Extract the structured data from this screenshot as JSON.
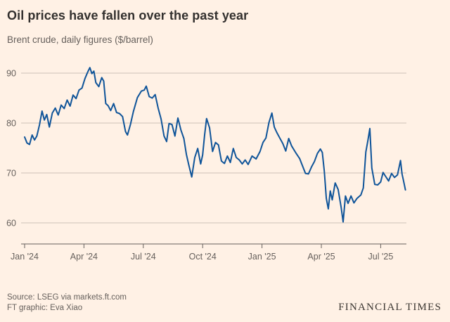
{
  "footer": {
    "source": "Source: LSEG via markets.ft.com",
    "credit": "FT graphic: Eva Xiao",
    "brand": "FINANCIAL TIMES"
  },
  "chart_data": {
    "type": "line",
    "title": "Oil prices have fallen over the past year",
    "subtitle": "Brent crude, daily figures ($/barrel)",
    "x_unit": "months since Jan 2024",
    "x_range": [
      0,
      19.3
    ],
    "x_ticks": [
      {
        "pos": 0,
        "label": "Jan '24"
      },
      {
        "pos": 3,
        "label": "Apr '24"
      },
      {
        "pos": 6,
        "label": "Jul '24"
      },
      {
        "pos": 9,
        "label": "Oct '24"
      },
      {
        "pos": 12,
        "label": "Jan '25"
      },
      {
        "pos": 15,
        "label": "Apr '25"
      },
      {
        "pos": 18,
        "label": "Jul '25"
      }
    ],
    "y_ticks": [
      60,
      70,
      80,
      90
    ],
    "ylim": [
      55.8,
      93
    ],
    "grid": true,
    "legend": "none",
    "colors": {
      "background": "#fff1e5",
      "line": "#0f5499",
      "grid": "#ccc1b7",
      "axis": "#66605c",
      "title_text": "#33302e",
      "muted_text": "#66605c"
    },
    "series": [
      {
        "name": "Brent crude ($/barrel)",
        "points": [
          [
            0,
            77.2
          ],
          [
            0.12,
            76.0
          ],
          [
            0.25,
            75.7
          ],
          [
            0.38,
            77.6
          ],
          [
            0.5,
            76.6
          ],
          [
            0.62,
            77.4
          ],
          [
            0.75,
            79.6
          ],
          [
            0.88,
            82.4
          ],
          [
            1.0,
            80.6
          ],
          [
            1.12,
            81.7
          ],
          [
            1.25,
            79.2
          ],
          [
            1.4,
            82.0
          ],
          [
            1.55,
            83.0
          ],
          [
            1.7,
            81.6
          ],
          [
            1.85,
            83.6
          ],
          [
            2.0,
            82.9
          ],
          [
            2.15,
            84.6
          ],
          [
            2.3,
            83.4
          ],
          [
            2.45,
            85.6
          ],
          [
            2.6,
            84.9
          ],
          [
            2.75,
            86.6
          ],
          [
            2.9,
            87.0
          ],
          [
            3.05,
            88.9
          ],
          [
            3.2,
            90.3
          ],
          [
            3.3,
            91.1
          ],
          [
            3.4,
            89.9
          ],
          [
            3.5,
            90.4
          ],
          [
            3.6,
            88.1
          ],
          [
            3.75,
            87.3
          ],
          [
            3.9,
            89.1
          ],
          [
            4.0,
            88.4
          ],
          [
            4.1,
            83.9
          ],
          [
            4.22,
            83.5
          ],
          [
            4.35,
            82.5
          ],
          [
            4.5,
            83.9
          ],
          [
            4.65,
            82.1
          ],
          [
            4.8,
            81.9
          ],
          [
            4.95,
            81.3
          ],
          [
            5.1,
            78.3
          ],
          [
            5.2,
            77.6
          ],
          [
            5.35,
            79.7
          ],
          [
            5.5,
            82.3
          ],
          [
            5.7,
            85.1
          ],
          [
            5.9,
            86.4
          ],
          [
            6.05,
            86.6
          ],
          [
            6.15,
            87.4
          ],
          [
            6.3,
            85.3
          ],
          [
            6.45,
            85.0
          ],
          [
            6.6,
            85.7
          ],
          [
            6.75,
            83.0
          ],
          [
            6.9,
            80.8
          ],
          [
            7.05,
            77.4
          ],
          [
            7.18,
            76.3
          ],
          [
            7.3,
            79.9
          ],
          [
            7.45,
            79.7
          ],
          [
            7.6,
            77.4
          ],
          [
            7.75,
            81.0
          ],
          [
            7.9,
            78.6
          ],
          [
            8.05,
            76.9
          ],
          [
            8.18,
            73.7
          ],
          [
            8.3,
            71.6
          ],
          [
            8.45,
            69.2
          ],
          [
            8.6,
            73.1
          ],
          [
            8.75,
            74.9
          ],
          [
            8.9,
            71.8
          ],
          [
            9.0,
            73.6
          ],
          [
            9.1,
            77.6
          ],
          [
            9.2,
            80.9
          ],
          [
            9.35,
            79.0
          ],
          [
            9.5,
            74.3
          ],
          [
            9.65,
            76.1
          ],
          [
            9.8,
            75.6
          ],
          [
            9.95,
            72.4
          ],
          [
            10.1,
            71.9
          ],
          [
            10.25,
            73.4
          ],
          [
            10.4,
            72.1
          ],
          [
            10.55,
            74.9
          ],
          [
            10.7,
            73.1
          ],
          [
            10.85,
            72.6
          ],
          [
            11.0,
            71.8
          ],
          [
            11.15,
            72.6
          ],
          [
            11.3,
            71.7
          ],
          [
            11.5,
            73.4
          ],
          [
            11.7,
            72.8
          ],
          [
            11.9,
            74.3
          ],
          [
            12.05,
            76.1
          ],
          [
            12.2,
            77.0
          ],
          [
            12.35,
            80.1
          ],
          [
            12.5,
            82.0
          ],
          [
            12.62,
            79.2
          ],
          [
            12.75,
            78.1
          ],
          [
            12.9,
            77.0
          ],
          [
            13.05,
            75.9
          ],
          [
            13.2,
            74.4
          ],
          [
            13.35,
            76.9
          ],
          [
            13.5,
            75.4
          ],
          [
            13.7,
            74.1
          ],
          [
            13.9,
            72.9
          ],
          [
            14.05,
            71.4
          ],
          [
            14.2,
            69.9
          ],
          [
            14.35,
            69.8
          ],
          [
            14.5,
            71.2
          ],
          [
            14.65,
            72.3
          ],
          [
            14.8,
            73.9
          ],
          [
            14.95,
            74.8
          ],
          [
            15.05,
            74.1
          ],
          [
            15.15,
            70.4
          ],
          [
            15.25,
            64.9
          ],
          [
            15.35,
            62.8
          ],
          [
            15.45,
            66.4
          ],
          [
            15.55,
            64.6
          ],
          [
            15.7,
            68.0
          ],
          [
            15.85,
            66.7
          ],
          [
            16.0,
            63.1
          ],
          [
            16.1,
            60.2
          ],
          [
            16.22,
            65.4
          ],
          [
            16.35,
            63.9
          ],
          [
            16.5,
            65.4
          ],
          [
            16.65,
            64.0
          ],
          [
            16.8,
            64.9
          ],
          [
            17.0,
            65.6
          ],
          [
            17.12,
            67.0
          ],
          [
            17.25,
            74.2
          ],
          [
            17.35,
            76.4
          ],
          [
            17.45,
            78.9
          ],
          [
            17.55,
            71.0
          ],
          [
            17.7,
            67.7
          ],
          [
            17.85,
            67.6
          ],
          [
            18.0,
            68.2
          ],
          [
            18.12,
            70.1
          ],
          [
            18.25,
            69.3
          ],
          [
            18.4,
            68.4
          ],
          [
            18.55,
            69.9
          ],
          [
            18.7,
            69.1
          ],
          [
            18.85,
            69.6
          ],
          [
            19.0,
            72.5
          ],
          [
            19.08,
            69.8
          ],
          [
            19.16,
            68.3
          ],
          [
            19.25,
            66.6
          ]
        ]
      }
    ]
  }
}
